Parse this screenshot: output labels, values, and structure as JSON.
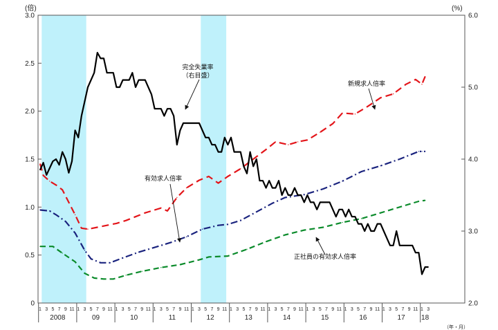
{
  "chart_data": {
    "type": "line",
    "left_axis": {
      "unit": "(倍)",
      "ylim": [
        0,
        3.0
      ],
      "ticks": [
        "0",
        "0.5",
        "1.0",
        "1.5",
        "2.0",
        "2.5",
        "3.0"
      ]
    },
    "right_axis": {
      "unit": "(%)",
      "ylim": [
        2.0,
        6.0
      ],
      "ticks": [
        "2.0",
        "3.0",
        "4.0",
        "5.0",
        "6.0"
      ]
    },
    "x_unit": "（年・月）",
    "years": [
      "2008",
      "09",
      "10",
      "11",
      "12",
      "13",
      "14",
      "15",
      "16",
      "17",
      "18"
    ],
    "month_ticks": [
      "1",
      "3",
      "5",
      "7",
      "9",
      "11"
    ],
    "recession_shading": [
      [
        "2008-02",
        "2009-03"
      ],
      [
        "2012-04",
        "2012-11"
      ]
    ],
    "series": [
      {
        "name": "新規求人倍率",
        "color": "#e3151a",
        "dash": "10,6",
        "axis": "left",
        "points": [
          [
            "2008-01",
            1.45
          ],
          [
            "2008-02",
            1.33
          ],
          [
            "2008-04",
            1.27
          ],
          [
            "2008-06",
            1.23
          ],
          [
            "2008-08",
            1.18
          ],
          [
            "2008-10",
            1.05
          ],
          [
            "2008-12",
            0.92
          ],
          [
            "2009-02",
            0.78
          ],
          [
            "2009-04",
            0.77
          ],
          [
            "2009-07",
            0.79
          ],
          [
            "2009-10",
            0.81
          ],
          [
            "2010-01",
            0.83
          ],
          [
            "2010-04",
            0.86
          ],
          [
            "2010-07",
            0.9
          ],
          [
            "2010-10",
            0.94
          ],
          [
            "2011-01",
            0.97
          ],
          [
            "2011-03",
            0.99
          ],
          [
            "2011-05",
            0.96
          ],
          [
            "2011-08",
            1.1
          ],
          [
            "2011-11",
            1.2
          ],
          [
            "2012-03",
            1.28
          ],
          [
            "2012-06",
            1.32
          ],
          [
            "2012-09",
            1.25
          ],
          [
            "2012-12",
            1.32
          ],
          [
            "2013-04",
            1.4
          ],
          [
            "2013-08",
            1.5
          ],
          [
            "2013-12",
            1.6
          ],
          [
            "2014-03",
            1.68
          ],
          [
            "2014-07",
            1.65
          ],
          [
            "2014-10",
            1.68
          ],
          [
            "2015-01",
            1.7
          ],
          [
            "2015-05",
            1.78
          ],
          [
            "2015-09",
            1.87
          ],
          [
            "2015-12",
            1.98
          ],
          [
            "2016-04",
            1.97
          ],
          [
            "2016-08",
            2.05
          ],
          [
            "2016-12",
            2.14
          ],
          [
            "2017-04",
            2.18
          ],
          [
            "2017-08",
            2.28
          ],
          [
            "2017-11",
            2.33
          ],
          [
            "2018-01",
            2.28
          ],
          [
            "2018-02",
            2.36
          ]
        ]
      },
      {
        "name": "有効求人倍率",
        "color": "#1a237e",
        "dash": "10,4,2,4",
        "axis": "left",
        "points": [
          [
            "2008-01",
            0.97
          ],
          [
            "2008-04",
            0.96
          ],
          [
            "2008-06",
            0.92
          ],
          [
            "2008-09",
            0.85
          ],
          [
            "2008-12",
            0.73
          ],
          [
            "2009-03",
            0.55
          ],
          [
            "2009-05",
            0.46
          ],
          [
            "2009-08",
            0.42
          ],
          [
            "2009-11",
            0.42
          ],
          [
            "2010-03",
            0.47
          ],
          [
            "2010-08",
            0.53
          ],
          [
            "2011-01",
            0.58
          ],
          [
            "2011-06",
            0.63
          ],
          [
            "2011-11",
            0.69
          ],
          [
            "2012-04",
            0.77
          ],
          [
            "2012-09",
            0.81
          ],
          [
            "2012-12",
            0.82
          ],
          [
            "2013-04",
            0.86
          ],
          [
            "2013-09",
            0.95
          ],
          [
            "2014-02",
            1.04
          ],
          [
            "2014-06",
            1.1
          ],
          [
            "2014-12",
            1.13
          ],
          [
            "2015-06",
            1.19
          ],
          [
            "2015-12",
            1.27
          ],
          [
            "2016-06",
            1.37
          ],
          [
            "2016-12",
            1.43
          ],
          [
            "2017-06",
            1.5
          ],
          [
            "2017-12",
            1.58
          ],
          [
            "2018-01",
            1.58
          ],
          [
            "2018-02",
            1.58
          ]
        ]
      },
      {
        "name": "正社員の有効求人倍率",
        "color": "#0b8b2b",
        "dash": "8,5",
        "axis": "left",
        "points": [
          [
            "2008-01",
            0.59
          ],
          [
            "2008-05",
            0.59
          ],
          [
            "2008-08",
            0.52
          ],
          [
            "2008-12",
            0.43
          ],
          [
            "2009-03",
            0.31
          ],
          [
            "2009-06",
            0.26
          ],
          [
            "2009-09",
            0.25
          ],
          [
            "2009-12",
            0.25
          ],
          [
            "2010-04",
            0.29
          ],
          [
            "2010-09",
            0.33
          ],
          [
            "2011-03",
            0.37
          ],
          [
            "2011-09",
            0.4
          ],
          [
            "2012-03",
            0.45
          ],
          [
            "2012-06",
            0.48
          ],
          [
            "2012-12",
            0.49
          ],
          [
            "2013-06",
            0.56
          ],
          [
            "2013-12",
            0.64
          ],
          [
            "2014-06",
            0.71
          ],
          [
            "2014-12",
            0.76
          ],
          [
            "2015-06",
            0.79
          ],
          [
            "2015-12",
            0.84
          ],
          [
            "2016-06",
            0.88
          ],
          [
            "2016-12",
            0.94
          ],
          [
            "2017-06",
            1.0
          ],
          [
            "2017-12",
            1.06
          ],
          [
            "2018-02",
            1.07
          ]
        ]
      },
      {
        "name": "完全失業率",
        "color": "#000000",
        "dash": "",
        "axis": "right",
        "points": [
          [
            "2008-01",
            3.85
          ],
          [
            "2008-02",
            3.95
          ],
          [
            "2008-03",
            3.78
          ],
          [
            "2008-05",
            3.97
          ],
          [
            "2008-06",
            4.0
          ],
          [
            "2008-07",
            3.92
          ],
          [
            "2008-08",
            4.1
          ],
          [
            "2008-09",
            4.0
          ],
          [
            "2008-10",
            3.81
          ],
          [
            "2008-11",
            3.97
          ],
          [
            "2008-12",
            4.4
          ],
          [
            "2009-01",
            4.3
          ],
          [
            "2009-02",
            4.6
          ],
          [
            "2009-04",
            5.0
          ],
          [
            "2009-06",
            5.2
          ],
          [
            "2009-07",
            5.48
          ],
          [
            "2009-08",
            5.4
          ],
          [
            "2009-09",
            5.4
          ],
          [
            "2009-10",
            5.2
          ],
          [
            "2009-11",
            5.2
          ],
          [
            "2009-12",
            5.2
          ],
          [
            "2010-01",
            5.0
          ],
          [
            "2010-02",
            5.0
          ],
          [
            "2010-03",
            5.1
          ],
          [
            "2010-04",
            5.1
          ],
          [
            "2010-05",
            5.1
          ],
          [
            "2010-06",
            5.2
          ],
          [
            "2010-07",
            5.0
          ],
          [
            "2010-08",
            5.1
          ],
          [
            "2010-09",
            5.1
          ],
          [
            "2010-10",
            5.1
          ],
          [
            "2010-12",
            4.9
          ],
          [
            "2011-01",
            4.7
          ],
          [
            "2011-03",
            4.7
          ],
          [
            "2011-04",
            4.6
          ],
          [
            "2011-05",
            4.7
          ],
          [
            "2011-06",
            4.7
          ],
          [
            "2011-07",
            4.6
          ],
          [
            "2011-08",
            4.2
          ],
          [
            "2011-09",
            4.4
          ],
          [
            "2011-10",
            4.5
          ],
          [
            "2011-12",
            4.5
          ],
          [
            "2012-03",
            4.5
          ],
          [
            "2012-05",
            4.3
          ],
          [
            "2012-06",
            4.3
          ],
          [
            "2012-07",
            4.2
          ],
          [
            "2012-08",
            4.2
          ],
          [
            "2012-09",
            4.1
          ],
          [
            "2012-10",
            4.1
          ],
          [
            "2012-11",
            4.3
          ],
          [
            "2012-12",
            4.2
          ],
          [
            "2013-01",
            4.3
          ],
          [
            "2013-02",
            4.1
          ],
          [
            "2013-04",
            4.1
          ],
          [
            "2013-05",
            3.9
          ],
          [
            "2013-06",
            3.8
          ],
          [
            "2013-07",
            4.1
          ],
          [
            "2013-08",
            3.9
          ],
          [
            "2013-09",
            4.0
          ],
          [
            "2013-10",
            3.7
          ],
          [
            "2013-11",
            3.7
          ],
          [
            "2013-12",
            3.6
          ],
          [
            "2014-01",
            3.7
          ],
          [
            "2014-02",
            3.6
          ],
          [
            "2014-03",
            3.6
          ],
          [
            "2014-04",
            3.7
          ],
          [
            "2014-05",
            3.5
          ],
          [
            "2014-06",
            3.6
          ],
          [
            "2014-07",
            3.5
          ],
          [
            "2014-08",
            3.5
          ],
          [
            "2014-09",
            3.6
          ],
          [
            "2014-10",
            3.5
          ],
          [
            "2014-11",
            3.5
          ],
          [
            "2014-12",
            3.4
          ],
          [
            "2015-01",
            3.5
          ],
          [
            "2015-02",
            3.4
          ],
          [
            "2015-03",
            3.4
          ],
          [
            "2015-04",
            3.3
          ],
          [
            "2015-05",
            3.4
          ],
          [
            "2015-06",
            3.4
          ],
          [
            "2015-07",
            3.4
          ],
          [
            "2015-08",
            3.4
          ],
          [
            "2015-09",
            3.3
          ],
          [
            "2015-10",
            3.2
          ],
          [
            "2015-11",
            3.3
          ],
          [
            "2015-12",
            3.3
          ],
          [
            "2016-01",
            3.2
          ],
          [
            "2016-02",
            3.3
          ],
          [
            "2016-03",
            3.2
          ],
          [
            "2016-04",
            3.2
          ],
          [
            "2016-05",
            3.1
          ],
          [
            "2016-06",
            3.1
          ],
          [
            "2016-07",
            3.0
          ],
          [
            "2016-08",
            3.1
          ],
          [
            "2016-09",
            3.0
          ],
          [
            "2016-10",
            3.0
          ],
          [
            "2016-11",
            3.1
          ],
          [
            "2016-12",
            3.1
          ],
          [
            "2017-01",
            3.0
          ],
          [
            "2017-02",
            2.9
          ],
          [
            "2017-03",
            2.8
          ],
          [
            "2017-04",
            2.8
          ],
          [
            "2017-05",
            3.0
          ],
          [
            "2017-06",
            2.8
          ],
          [
            "2017-07",
            2.8
          ],
          [
            "2017-08",
            2.8
          ],
          [
            "2017-09",
            2.8
          ],
          [
            "2017-10",
            2.8
          ],
          [
            "2017-11",
            2.7
          ],
          [
            "2017-12",
            2.7
          ],
          [
            "2018-01",
            2.4
          ],
          [
            "2018-02",
            2.5
          ],
          [
            "2018-03",
            2.5
          ]
        ]
      }
    ],
    "annotations": [
      {
        "id": "unemployment",
        "lines": [
          "完全失業率",
          "（右目盛）"
        ]
      },
      {
        "id": "new-openings",
        "lines": [
          "新規求人倍率"
        ]
      },
      {
        "id": "active-openings",
        "lines": [
          "有効求人倍率"
        ]
      },
      {
        "id": "regular-openings",
        "lines": [
          "正社員の有効求人倍率"
        ]
      }
    ]
  }
}
